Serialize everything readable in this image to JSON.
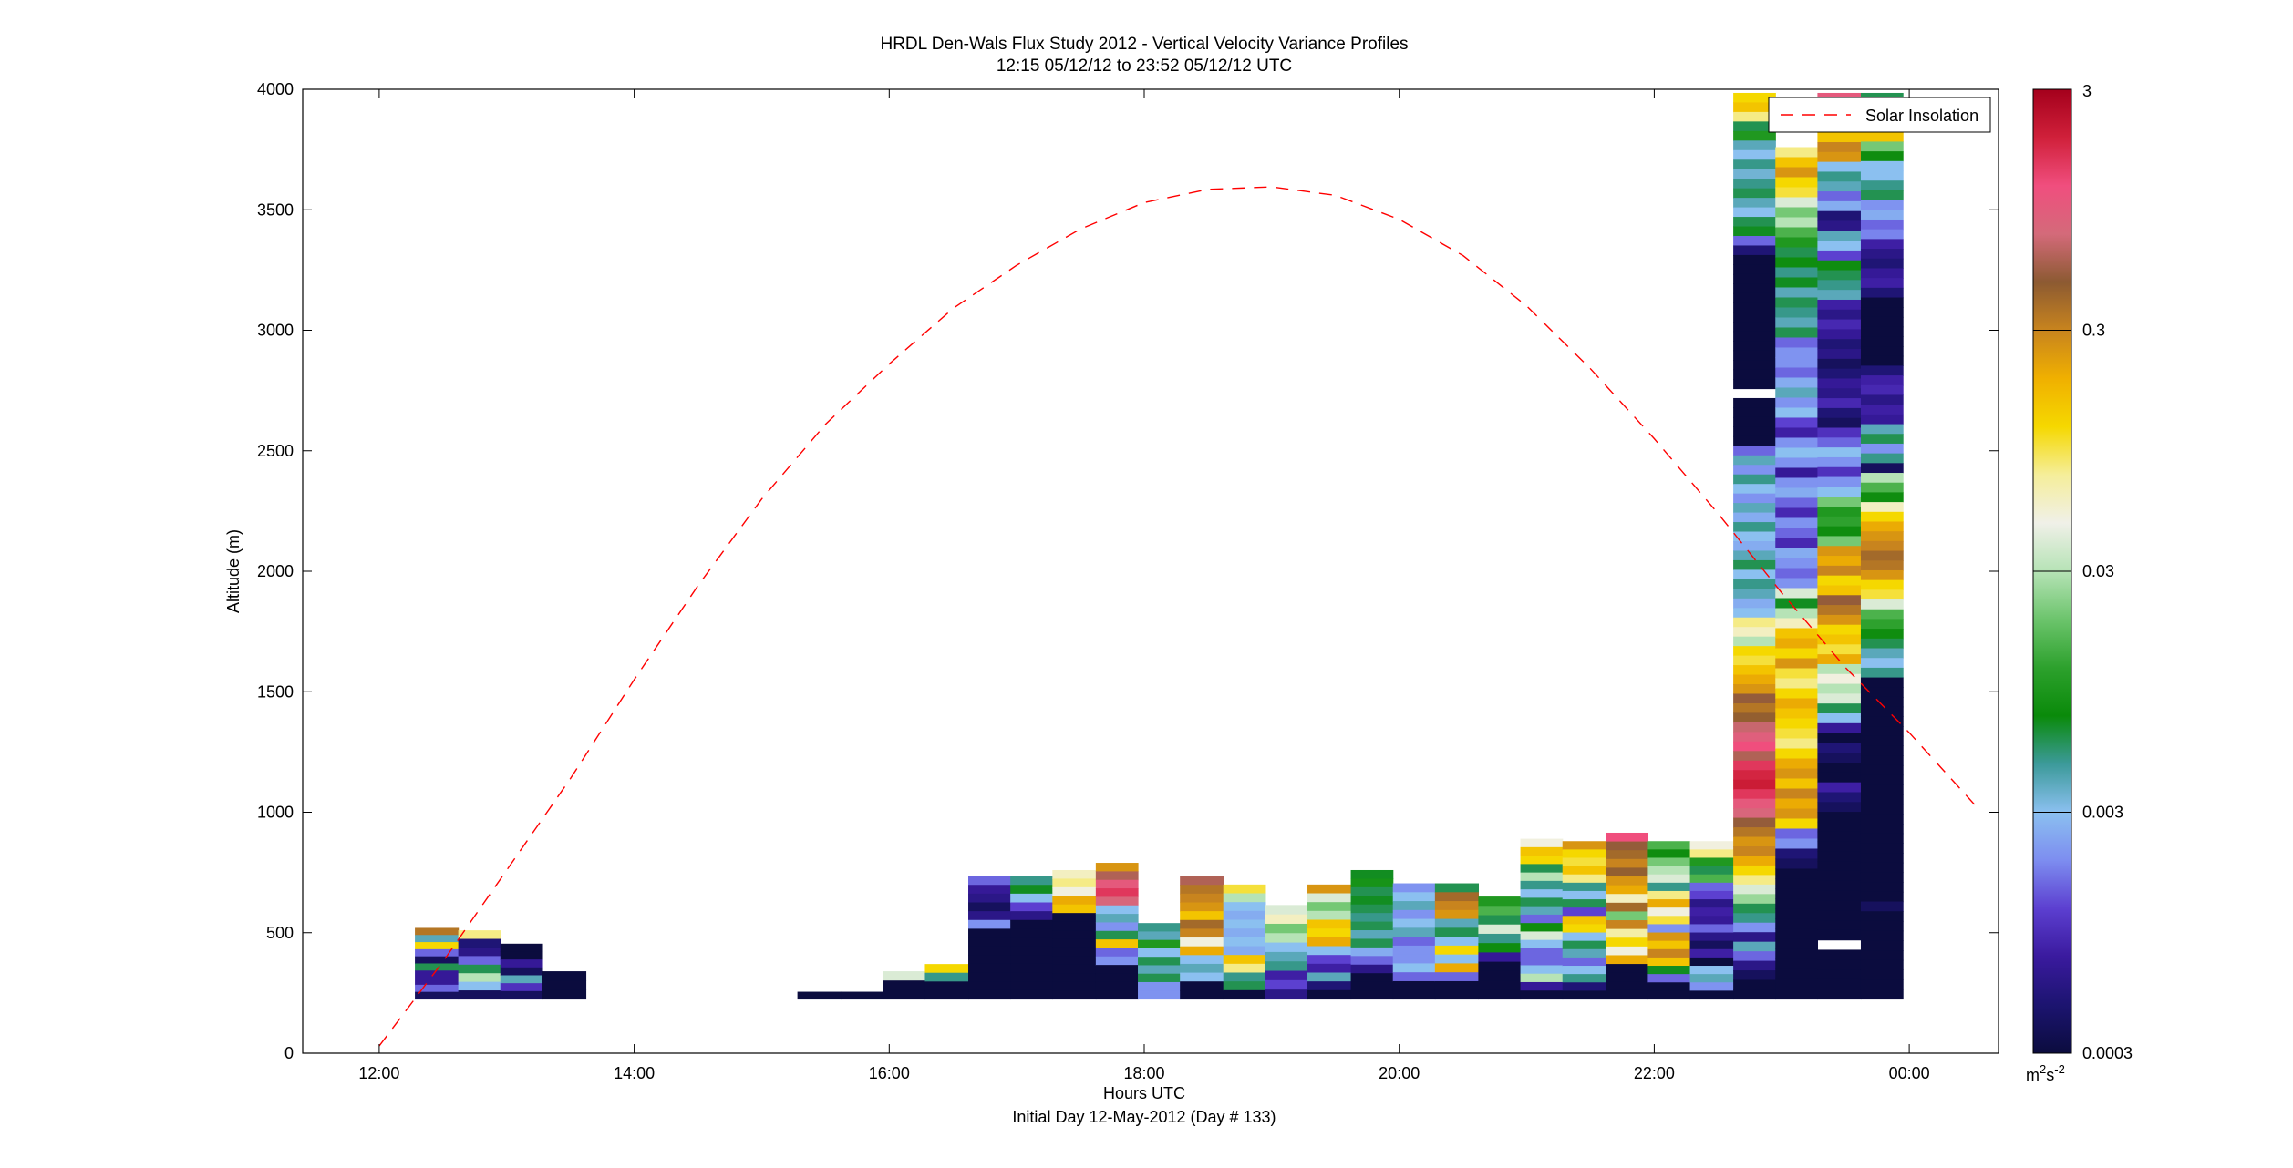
{
  "chart_data": {
    "type": "heatmap",
    "title": "HRDL Den-Wals Flux Study 2012 - Vertical Velocity Variance Profiles",
    "subtitle": "12:15 05/12/12 to 23:52 05/12/12  UTC",
    "xlabel": "Hours UTC",
    "xlabel2": "Initial Day 12-May-2012 (Day # 133)",
    "ylabel": "Altitude (m)",
    "xlim": [
      11.4,
      24.7
    ],
    "ylim": [
      0,
      4000
    ],
    "xticks": [
      12,
      14,
      16,
      18,
      20,
      22,
      24
    ],
    "xtick_labels": [
      "12:00",
      "14:00",
      "16:00",
      "18:00",
      "20:00",
      "22:00",
      "00:00"
    ],
    "yticks": [
      0,
      500,
      1000,
      1500,
      2000,
      2500,
      3000,
      3500,
      4000
    ],
    "ytick_labels": [
      "0",
      "500",
      "1000",
      "1500",
      "2000",
      "2500",
      "3000",
      "3500",
      "4000"
    ],
    "bin_height_m": 36,
    "base_altitude_m": 225,
    "colorbar": {
      "scale": "log",
      "range": [
        0.0003,
        3
      ],
      "ticks": [
        0.0003,
        0.003,
        0.03,
        0.3,
        3
      ],
      "tick_labels": [
        "0.0003",
        "0.003",
        "0.03",
        "0.3",
        "3"
      ],
      "unit_base": "m",
      "unit_sup1": "2",
      "unit_mid": "s",
      "unit_sup2": "-2",
      "stops": [
        "#0b0c3e",
        "#1c1470",
        "#3a1a9e",
        "#5c3fd0",
        "#7d8df0",
        "#8bc0f0",
        "#3c9a9a",
        "#0a8a0a",
        "#2da12d",
        "#6cc46c",
        "#b6e3b6",
        "#f0f0e8",
        "#f5ee9a",
        "#f5d800",
        "#f0b000",
        "#c8841e",
        "#8c5a32",
        "#d46a7a",
        "#f04e7e",
        "#d0203a",
        "#a4001c"
      ]
    },
    "series": [
      {
        "name": "Solar Insolation",
        "x": [
          12.0,
          12.5,
          13.0,
          13.5,
          14.0,
          14.5,
          15.0,
          15.5,
          16.0,
          16.5,
          17.0,
          17.5,
          18.0,
          18.5,
          19.0,
          19.5,
          20.0,
          20.5,
          21.0,
          21.5,
          22.0,
          22.5,
          23.0,
          23.5,
          24.0,
          24.55
        ],
        "y": [
          30,
          380,
          760,
          1140,
          1550,
          1940,
          2300,
          2610,
          2860,
          3090,
          3270,
          3420,
          3530,
          3585,
          3595,
          3560,
          3460,
          3310,
          3100,
          2840,
          2550,
          2240,
          1910,
          1600,
          1330,
          1010
        ]
      }
    ],
    "profiles": [
      {
        "t0": 12.28,
        "t1": 12.62,
        "top": 520,
        "v": [
          0.35,
          0.004,
          0.12,
          0.0015,
          0.0004,
          0.006,
          0.0007,
          0.0007,
          0.0015,
          0.0004
        ]
      },
      {
        "t0": 12.62,
        "t1": 12.95,
        "top": 510,
        "v": [
          0.08,
          0.0005,
          0.0006,
          0.0015,
          0.006,
          0.03,
          0.003,
          0.0004
        ]
      },
      {
        "t0": 12.95,
        "t1": 13.28,
        "top": 520,
        "v": [
          -1,
          -1,
          0.0003,
          0.0003,
          0.0007,
          0.0004,
          0.004,
          0.001,
          0.0004
        ]
      },
      {
        "t0": 13.28,
        "t1": 13.62,
        "top": 340,
        "v": [
          0.0003,
          0.0003,
          0.0003
        ]
      },
      {
        "t0": 15.28,
        "t1": 15.62,
        "top": 255,
        "v": [
          0.0003
        ]
      },
      {
        "t0": 15.62,
        "t1": 15.95,
        "top": 255,
        "v": [
          0.0003
        ]
      },
      {
        "t0": 15.95,
        "t1": 16.28,
        "top": 340,
        "v": [
          0.04,
          0.0003,
          0.0003
        ]
      },
      {
        "t0": 16.28,
        "t1": 16.62,
        "top": 370,
        "v": [
          0.12,
          0.005,
          0.0003,
          0.0003
        ]
      },
      {
        "t0": 16.62,
        "t1": 16.95,
        "top": 735,
        "v": [
          0.0015,
          0.0007,
          0.0006,
          0.0004,
          0.0006,
          0.002,
          0.0003,
          0.0003,
          0.0003,
          0.0003,
          0.0003,
          0.0003,
          0.0003,
          0.0003
        ]
      },
      {
        "t0": 16.95,
        "t1": 17.28,
        "top": 735,
        "v": [
          0.005,
          0.007,
          0.003,
          0.0012,
          0.0006,
          0.0003,
          0.0003,
          0.0003,
          0.0003,
          0.0003,
          0.0003,
          0.0003,
          0.0003,
          0.0003
        ]
      },
      {
        "t0": 17.28,
        "t1": 17.62,
        "top": 760,
        "v": [
          0.06,
          0.08,
          0.05,
          0.2,
          0.15,
          0.0003,
          0.0003,
          0.0003,
          0.0003,
          0.0003,
          0.0003,
          0.0003,
          0.0003,
          0.0003,
          0.0003
        ]
      },
      {
        "t0": 17.62,
        "t1": 17.95,
        "top": 790,
        "v": [
          0.25,
          0.6,
          1.0,
          1.5,
          0.8,
          0.003,
          0.004,
          0.002,
          0.006,
          0.15,
          0.0015,
          0.002,
          0.0003,
          0.0003,
          0.0003,
          0.0003
        ]
      },
      {
        "t0": 17.95,
        "t1": 18.28,
        "top": 540,
        "v": [
          0.005,
          0.004,
          0.01,
          0.003,
          0.006,
          0.004,
          0.006,
          0.002,
          0.002
        ]
      },
      {
        "t0": 18.28,
        "t1": 18.62,
        "top": 735,
        "v": [
          0.6,
          0.35,
          0.3,
          0.25,
          0.15,
          0.4,
          0.3,
          0.05,
          0.2,
          0.003,
          0.004,
          0.003,
          0.0003,
          0.0003
        ]
      },
      {
        "t0": 18.62,
        "t1": 18.95,
        "top": 700,
        "v": [
          0.1,
          0.03,
          0.003,
          0.0025,
          0.003,
          0.0025,
          0.003,
          0.0025,
          0.15,
          0.08,
          0.005,
          0.006,
          0.0003
        ]
      },
      {
        "t0": 18.95,
        "t1": 19.28,
        "top": 615,
        "v": [
          0.04,
          0.06,
          0.02,
          0.03,
          0.003,
          0.004,
          0.005,
          0.0008,
          0.0012,
          0.0006
        ]
      },
      {
        "t0": 19.28,
        "t1": 19.62,
        "top": 700,
        "v": [
          0.25,
          0.04,
          0.02,
          0.03,
          0.15,
          0.12,
          0.2,
          0.003,
          0.0012,
          0.0008,
          0.004,
          0.0005,
          0.0003
        ]
      },
      {
        "t0": 19.62,
        "t1": 19.95,
        "top": 760,
        "v": [
          0.007,
          0.009,
          0.006,
          0.007,
          0.006,
          0.005,
          0.006,
          0.004,
          0.006,
          0.0025,
          0.0015,
          0.0006,
          0.0003,
          0.0003,
          0.0003
        ]
      },
      {
        "t0": 19.95,
        "t1": 20.28,
        "top": 705,
        "v": [
          0.002,
          0.003,
          0.004,
          0.002,
          0.003,
          0.004,
          0.0015,
          0.002,
          0.002,
          0.003,
          0.0015,
          0.0003,
          0.0003
        ]
      },
      {
        "t0": 20.28,
        "t1": 20.62,
        "top": 705,
        "v": [
          0.006,
          0.4,
          0.3,
          0.25,
          0.004,
          0.006,
          0.003,
          0.12,
          0.003,
          0.2,
          0.0015,
          0.0003,
          0.0003
        ]
      },
      {
        "t0": 20.62,
        "t1": 20.95,
        "top": 650,
        "v": [
          0.01,
          0.015,
          0.006,
          0.04,
          0.005,
          0.008,
          0.0007,
          0.0003,
          0.0003,
          0.0003,
          0.0003
        ]
      },
      {
        "t0": 20.95,
        "t1": 21.28,
        "top": 890,
        "v": [
          0.05,
          0.15,
          0.12,
          0.006,
          0.03,
          0.005,
          0.003,
          0.006,
          0.004,
          0.0015,
          0.008,
          0.04,
          0.003,
          0.0015,
          0.0015,
          0.003,
          0.03,
          0.0007,
          0.0003
        ]
      },
      {
        "t0": 21.28,
        "t1": 21.62,
        "top": 880,
        "v": [
          0.25,
          0.12,
          0.1,
          0.15,
          0.08,
          0.005,
          0.003,
          0.006,
          0.0012,
          0.15,
          0.12,
          0.003,
          0.006,
          0.004,
          0.0015,
          0.003,
          0.005,
          0.0005,
          0.0003
        ]
      },
      {
        "t0": 21.62,
        "t1": 21.95,
        "top": 915,
        "v": [
          1.2,
          0.5,
          0.4,
          0.3,
          0.45,
          0.25,
          0.2,
          0.06,
          0.4,
          0.02,
          0.3,
          0.07,
          0.12,
          0.05,
          0.2,
          0.0003,
          0.0003,
          0.0003,
          0.0003
        ]
      },
      {
        "t0": 21.95,
        "t1": 22.28,
        "top": 880,
        "v": [
          0.015,
          0.008,
          0.02,
          0.03,
          0.04,
          0.005,
          0.08,
          0.2,
          0.05,
          0.1,
          0.002,
          0.25,
          0.15,
          0.3,
          0.15,
          0.007,
          0.0015,
          0.0003,
          0.0003
        ]
      },
      {
        "t0": 22.28,
        "t1": 22.62,
        "top": 880,
        "v": [
          0.05,
          0.08,
          0.01,
          0.006,
          0.015,
          0.0015,
          0.0012,
          0.0006,
          0.0008,
          0.0007,
          0.0015,
          0.0006,
          0.0004,
          0.0008,
          0.0003,
          0.003,
          0.004,
          0.002,
          0.0003
        ]
      },
      {
        "t0": 22.62,
        "t1": 22.95,
        "top": 3985,
        "v": [
          0.12,
          0.15,
          0.08,
          0.006,
          0.01,
          0.004,
          0.003,
          0.005,
          0.0035,
          0.005,
          0.006,
          0.004,
          0.003,
          0.006,
          0.007,
          0.0015,
          0.0005,
          0.0003,
          0.0003,
          0.0003,
          0.0003,
          0.0003,
          0.0003,
          0.0003,
          0.0003,
          0.0003,
          0.0003,
          0.0003,
          0.0003,
          0.0003,
          0.0003,
          -1,
          0.0003,
          0.0003,
          0.0003,
          0.0003,
          0.0003,
          0.0015,
          0.004,
          0.002,
          0.005,
          0.003,
          0.002,
          0.004,
          0.0025,
          0.005,
          0.003,
          0.0025,
          0.004,
          0.006,
          0.003,
          0.005,
          0.004,
          0.0025,
          0.003,
          0.08,
          0.06,
          0.03,
          0.12,
          0.1,
          0.15,
          0.2,
          0.25,
          0.5,
          0.35,
          0.45,
          0.7,
          0.9,
          1.2,
          0.6,
          1.5,
          1.8,
          2.0,
          1.5,
          1.0,
          0.8,
          0.5,
          0.35,
          0.25,
          0.3,
          0.2,
          0.12,
          0.08,
          0.04,
          0.025,
          0.006,
          0.005,
          0.002,
          0.0006,
          0.004,
          0.0015,
          0.0006,
          0.0004,
          0.0003,
          0.0003
        ]
      },
      {
        "t0": 22.95,
        "t1": 23.28,
        "top": 3760,
        "v": [
          0.08,
          0.15,
          0.25,
          0.12,
          0.1,
          0.04,
          0.02,
          0.03,
          0.015,
          0.01,
          0.006,
          0.008,
          0.005,
          0.007,
          0.004,
          0.006,
          0.005,
          0.004,
          0.006,
          0.0015,
          0.002,
          0.002,
          0.0015,
          0.0025,
          0.004,
          0.002,
          0.003,
          0.0012,
          0.0008,
          0.002,
          0.003,
          0.002,
          0.0007,
          0.002,
          0.0025,
          0.0015,
          0.0009,
          0.002,
          0.0015,
          0.0009,
          0.0025,
          0.002,
          0.0015,
          0.002,
          0.04,
          0.007,
          0.03,
          0.06,
          0.15,
          0.2,
          0.12,
          0.25,
          0.1,
          0.08,
          0.12,
          0.2,
          0.15,
          0.12,
          0.1,
          0.08,
          0.12,
          0.2,
          0.25,
          0.15,
          0.3,
          0.2,
          0.25,
          0.12,
          0.0015,
          0.002,
          0.0005,
          0.0004,
          0.0003,
          0.0003,
          0.0003,
          0.0003,
          0.0003,
          0.0003,
          0.0003,
          0.0003,
          0.0003,
          0.0003,
          0.0003,
          0.0003,
          0.0003
        ]
      },
      {
        "t0": 23.28,
        "t1": 23.62,
        "top": 3985,
        "v": [
          1.0,
          0.5,
          0.25,
          0.12,
          0.15,
          0.3,
          0.25,
          0.003,
          0.005,
          0.004,
          0.0015,
          0.0025,
          0.0005,
          0.0006,
          0.004,
          0.003,
          0.0012,
          0.008,
          0.006,
          0.005,
          0.004,
          0.0008,
          0.0006,
          0.0009,
          0.0007,
          0.0005,
          0.0006,
          0.0004,
          0.0005,
          0.0007,
          0.0006,
          0.0009,
          0.0005,
          0.0004,
          0.001,
          0.0015,
          0.003,
          0.002,
          0.001,
          0.002,
          0.003,
          0.02,
          0.01,
          0.012,
          0.008,
          0.02,
          0.25,
          0.2,
          0.3,
          0.12,
          0.15,
          0.5,
          0.35,
          0.25,
          0.12,
          0.15,
          0.1,
          0.2,
          0.03,
          0.05,
          0.03,
          0.04,
          0.006,
          0.003,
          0.0007,
          0.0003,
          0.0005,
          0.0004,
          0.0003,
          0.0003,
          0.0008,
          0.0005,
          0.0004,
          0.0003,
          0.0003,
          0.0003,
          0.0003,
          0.0003,
          0.0003,
          0.0003,
          0.0003,
          0.0003,
          0.0003,
          0.0003,
          0.0003,
          0.0003,
          -1,
          0.0003,
          0.0003,
          0.0003,
          0.0003,
          0.0003
        ]
      },
      {
        "t0": 23.62,
        "t1": 23.95,
        "top": 3985,
        "v": [
          0.006,
          0.005,
          0.004,
          0.12,
          0.15,
          0.02,
          0.008,
          0.003,
          0.003,
          0.005,
          0.006,
          0.002,
          0.0025,
          0.0015,
          0.0018,
          0.0008,
          0.0006,
          0.0005,
          0.0007,
          0.0008,
          0.0005,
          0.0003,
          0.0003,
          0.0003,
          0.0003,
          0.0003,
          0.0003,
          0.0003,
          0.0005,
          0.0008,
          0.0009,
          0.0006,
          0.0008,
          0.0007,
          0.004,
          0.006,
          0.002,
          0.005,
          0.0004,
          0.03,
          0.015,
          0.008,
          0.06,
          0.12,
          0.2,
          0.25,
          0.3,
          0.4,
          0.35,
          0.25,
          0.12,
          0.1,
          0.04,
          0.015,
          0.012,
          0.008,
          0.006,
          0.004,
          0.003,
          0.005,
          0.0003,
          0.0003,
          0.0003,
          0.0003,
          0.0003,
          0.0003,
          0.0003,
          0.0003,
          0.0003,
          0.0003,
          0.0003,
          0.0003,
          0.0003,
          0.0003,
          0.0003,
          0.0003,
          0.0003,
          0.0003,
          0.0003,
          0.0003,
          0.0003,
          0.0003,
          0.0003,
          0.0004,
          0.0003,
          0.0003,
          0.0003,
          0.0003,
          0.0003,
          0.0003,
          0.0003,
          0.0003,
          0.0003
        ]
      }
    ]
  },
  "legend": {
    "label": "Solar Insolation",
    "line_color": "#ff0000",
    "placement": "top-right"
  }
}
